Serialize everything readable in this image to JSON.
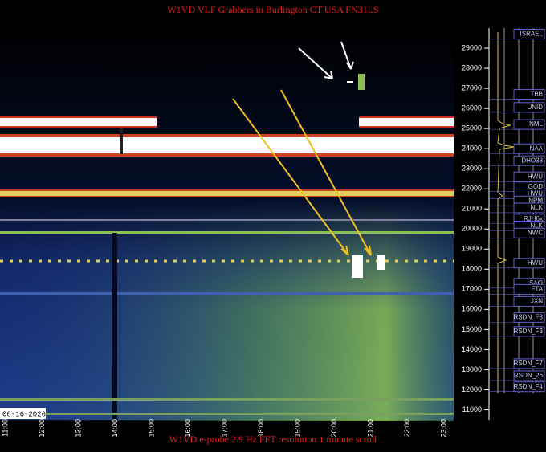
{
  "chart_data": {
    "type": "spectrogram",
    "title": "W1VD VLF Grabbers in Burlington CT USA FN31LS",
    "footer": "W1VD e-probe 2.9 Hz FFT resolution 1 minute scroll",
    "date": "06-16-2026",
    "time_labels": [
      "11:00",
      "12:00",
      "13:00",
      "14:00",
      "15:00",
      "16:00",
      "17:00",
      "18:00",
      "19:00",
      "20:00",
      "21:00",
      "22:00",
      "23:00"
    ],
    "ylim": [
      10500,
      30000
    ],
    "yticks": [
      11000,
      12000,
      13000,
      14000,
      15000,
      16000,
      17000,
      18000,
      19000,
      20000,
      21000,
      22000,
      23000,
      24000,
      25000,
      26000,
      27000,
      28000,
      29000
    ],
    "stations": [
      {
        "label": "ISRAEL",
        "freq": 29700
      },
      {
        "label": "TBB",
        "freq": 26700
      },
      {
        "label": "UNID",
        "freq": 26050
      },
      {
        "label": "NML",
        "freq": 25200
      },
      {
        "label": "NAA",
        "freq": 24000
      },
      {
        "label": "DHO38",
        "freq": 23400
      },
      {
        "label": "HWU",
        "freq": 22600
      },
      {
        "label": "GQD",
        "freq": 22100
      },
      {
        "label": "HWU",
        "freq": 21750
      },
      {
        "label": "NPM",
        "freq": 21400
      },
      {
        "label": "NLK",
        "freq": 21050
      },
      {
        "label": "RJH6x",
        "freq": 20500
      },
      {
        "label": "NLK",
        "freq": 20150
      },
      {
        "label": "NWC",
        "freq": 19800
      },
      {
        "label": "HWU",
        "freq": 18300
      },
      {
        "label": "SAQ",
        "freq": 17300
      },
      {
        "label": "FTA",
        "freq": 17000
      },
      {
        "label": "JXN",
        "freq": 16400
      },
      {
        "label": "RSDN_F8",
        "freq": 15600
      },
      {
        "label": "RSDN_F3",
        "freq": 14900
      },
      {
        "label": "RSDN_F7",
        "freq": 13300
      },
      {
        "label": "RSDN_26",
        "freq": 12700
      },
      {
        "label": "RSDN_F4",
        "freq": 12150
      }
    ]
  }
}
